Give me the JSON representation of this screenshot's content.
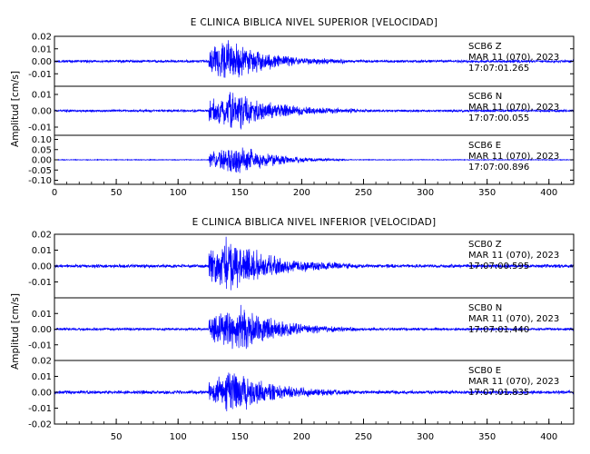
{
  "chart_data": [
    {
      "type": "line",
      "title": "E CLINICA BIBLICA NIVEL SUPERIOR [VELOCIDAD]",
      "xlabel": "",
      "ylabel": "Amplitud [cm/s]",
      "xlim": [
        0,
        420
      ],
      "xticks": [
        0,
        50,
        100,
        150,
        200,
        250,
        300,
        350,
        400
      ],
      "line_color": "#0000ff",
      "series": [
        {
          "name": "SCB6 Z",
          "station": "SCB6",
          "component": "Z",
          "date": "MAR 11 (070), 2023",
          "time": "17:07:01.265",
          "ylim": [
            -0.02,
            0.02
          ],
          "yticks": [
            "0.02",
            "0.01",
            "0.00",
            "-0.01"
          ],
          "noise_amplitude": 0.0012,
          "peak_amplitude": 0.02,
          "onset_s": 125,
          "peak_s": 140,
          "end_s": 235
        },
        {
          "name": "SCB6 N",
          "station": "SCB6",
          "component": "N",
          "date": "MAR 11 (070), 2023",
          "time": "17:07:00.055",
          "ylim": [
            -0.015,
            0.015
          ],
          "yticks": [
            "0.01",
            "0.00",
            "-0.01"
          ],
          "noise_amplitude": 0.0008,
          "peak_amplitude": 0.014,
          "onset_s": 125,
          "peak_s": 145,
          "end_s": 245
        },
        {
          "name": "SCB6 E",
          "station": "SCB6",
          "component": "E",
          "date": "MAR 11 (070), 2023",
          "time": "17:07:00.896",
          "ylim": [
            -0.12,
            0.12
          ],
          "yticks": [
            "0.10",
            "0.05",
            "0.00",
            "-0.05",
            "-0.10"
          ],
          "noise_amplitude": 0.002,
          "peak_amplitude": 0.085,
          "onset_s": 125,
          "peak_s": 150,
          "end_s": 235
        }
      ]
    },
    {
      "type": "line",
      "title": "E CLINICA BIBLICA NIVEL INFERIOR [VELOCIDAD]",
      "xlabel": "",
      "ylabel": "Amplitud [cm/s]",
      "xlim": [
        0,
        420
      ],
      "xticks": [
        50,
        100,
        150,
        200,
        250,
        300,
        350,
        400
      ],
      "line_color": "#0000ff",
      "series": [
        {
          "name": "SCB0 Z",
          "station": "SCB0",
          "component": "Z",
          "date": "MAR 11 (070), 2023",
          "time": "17:07:00.595",
          "ylim": [
            -0.02,
            0.02
          ],
          "yticks": [
            "0.02",
            "0.01",
            "0.00",
            "-0.01"
          ],
          "noise_amplitude": 0.0012,
          "peak_amplitude": 0.02,
          "onset_s": 125,
          "peak_s": 140,
          "end_s": 245
        },
        {
          "name": "SCB0 N",
          "station": "SCB0",
          "component": "N",
          "date": "MAR 11 (070), 2023",
          "time": "17:07:01.440",
          "ylim": [
            -0.02,
            0.02
          ],
          "yticks": [
            "0.01",
            "0.00",
            "-0.01"
          ],
          "noise_amplitude": 0.0009,
          "peak_amplitude": 0.016,
          "onset_s": 125,
          "peak_s": 150,
          "end_s": 245
        },
        {
          "name": "SCB0 E",
          "station": "SCB0",
          "component": "E",
          "date": "MAR 11 (070), 2023",
          "time": "17:07:01.835",
          "ylim": [
            -0.02,
            0.02
          ],
          "yticks": [
            "0.02",
            "0.01",
            "0.00",
            "-0.01",
            "-0.02"
          ],
          "noise_amplitude": 0.0012,
          "peak_amplitude": 0.016,
          "onset_s": 125,
          "peak_s": 145,
          "end_s": 240
        }
      ]
    }
  ]
}
